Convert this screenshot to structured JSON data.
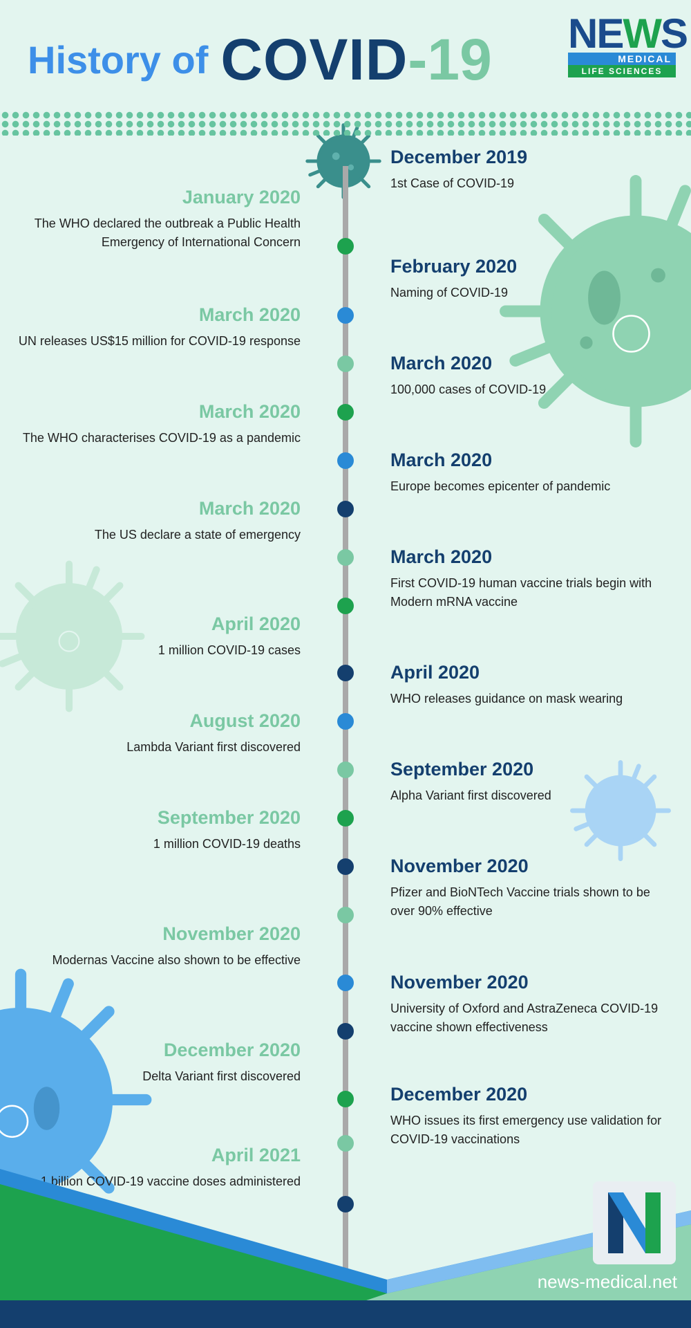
{
  "header": {
    "title_part1": "History of",
    "title_part2": "COVID",
    "title_part3": "-19"
  },
  "logo": {
    "news_n": "N",
    "news_e": "E",
    "news_w": "W",
    "news_s": "S",
    "medical": "MEDICAL",
    "life_sciences": "LIFE SCIENCES"
  },
  "colors": {
    "dark_blue": "#143f6e",
    "blue": "#2a8ad6",
    "green": "#1da24e",
    "mint": "#7ac8a3",
    "background": "#e3f5ef"
  },
  "timeline": {
    "events": [
      {
        "side": "right",
        "date": "December 2019",
        "desc": "1st Case of COVID-19",
        "dot": "virus"
      },
      {
        "side": "left",
        "date": "January 2020",
        "desc": "The WHO declared the outbreak a Public Health Emergency of International Concern",
        "dot": "#1da24e"
      },
      {
        "side": "right",
        "date": "February 2020",
        "desc": "Naming of COVID-19",
        "dot": "#2a8ad6"
      },
      {
        "side": "left",
        "date": "March 2020",
        "desc": "UN releases US$15 million for COVID-19 response",
        "dot": "#7ac8a3"
      },
      {
        "side": "right",
        "date": "March 2020",
        "desc": "100,000 cases of COVID-19",
        "dot": "#1da24e"
      },
      {
        "side": "left",
        "date": "March 2020",
        "desc": "The WHO characterises COVID-19 as a pandemic",
        "dot": "#2a8ad6"
      },
      {
        "side": "right",
        "date": "March 2020",
        "desc": "Europe becomes epicenter of pandemic",
        "dot": "#143f6e"
      },
      {
        "side": "left",
        "date": "March 2020",
        "desc": "The US declare a state of emergency",
        "dot": "#7ac8a3"
      },
      {
        "side": "right",
        "date": "March 2020",
        "desc": "First COVID-19 human vaccine trials begin with Modern mRNA vaccine",
        "dot": "#1da24e"
      },
      {
        "side": "left",
        "date": "April 2020",
        "desc": "1 million COVID-19 cases",
        "dot": "#143f6e"
      },
      {
        "side": "right",
        "date": "April 2020",
        "desc": "WHO releases guidance on mask wearing",
        "dot": "#2a8ad6"
      },
      {
        "side": "left",
        "date": "August 2020",
        "desc": "Lambda Variant first discovered",
        "dot": "#7ac8a3"
      },
      {
        "side": "right",
        "date": "September 2020",
        "desc": "Alpha Variant first discovered",
        "dot": "#1da24e"
      },
      {
        "side": "left",
        "date": "September 2020",
        "desc": "1 million COVID-19 deaths",
        "dot": "#143f6e"
      },
      {
        "side": "right",
        "date": "November 2020",
        "desc": "Pfizer and BioNTech Vaccine trials shown to be over 90% effective",
        "dot": "#7ac8a3"
      },
      {
        "side": "left",
        "date": "November 2020",
        "desc": "Modernas Vaccine also shown to be effective",
        "dot": "#2a8ad6"
      },
      {
        "side": "right",
        "date": "November 2020",
        "desc": "University of Oxford and AstraZeneca COVID-19 vaccine shown effectiveness",
        "dot": "#143f6e"
      },
      {
        "side": "left",
        "date": "December 2020",
        "desc": "Delta Variant first discovered",
        "dot": "#1da24e"
      },
      {
        "side": "right",
        "date": "December 2020",
        "desc": "WHO issues its first emergency use validation for COVID-19 vaccinations",
        "dot": "#7ac8a3"
      },
      {
        "side": "left",
        "date": "April 2021",
        "desc": "1 billion COVID-19 vaccine doses administered",
        "dot": "#143f6e"
      }
    ]
  },
  "footer": {
    "website": "news-medical.net",
    "badge_letter": "N"
  }
}
